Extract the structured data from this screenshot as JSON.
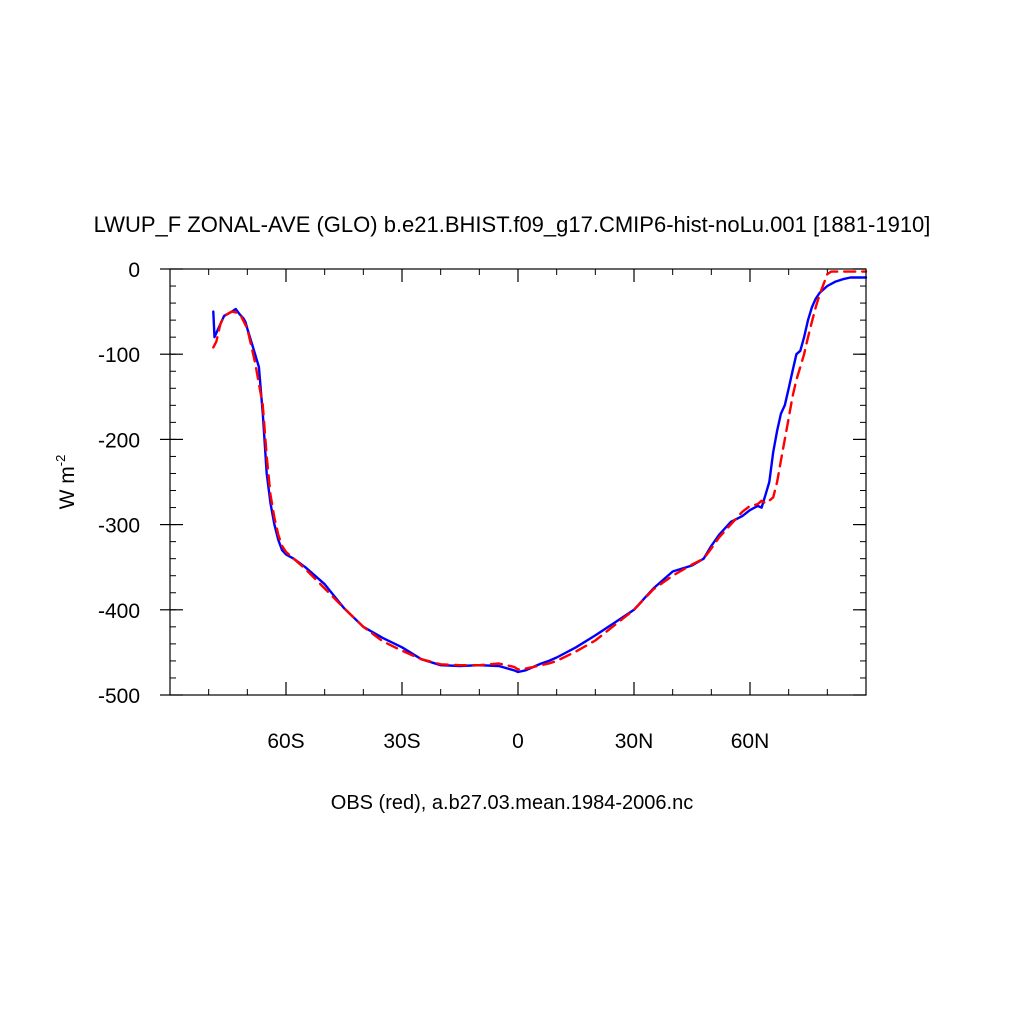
{
  "chart_data": {
    "type": "line",
    "title": "LWUP_F ZONAL-AVE (GLO) b.e21.BHIST.f09_g17.CMIP6-hist-noLu.001 [1881-1910]",
    "xlabel": "OBS (red), a.b27.03.mean.1984-2006.nc",
    "ylabel": "W m",
    "ylabel_exponent": "-2",
    "xlim": [
      -90,
      90
    ],
    "ylim": [
      -500,
      0
    ],
    "x_ticks": [
      {
        "value": -60,
        "label": "60S"
      },
      {
        "value": -30,
        "label": "30S"
      },
      {
        "value": 0,
        "label": "0"
      },
      {
        "value": 30,
        "label": "30N"
      },
      {
        "value": 60,
        "label": "60N"
      }
    ],
    "y_ticks": [
      {
        "value": 0,
        "label": "0"
      },
      {
        "value": -100,
        "label": "-100"
      },
      {
        "value": -200,
        "label": "-200"
      },
      {
        "value": -300,
        "label": "-300"
      },
      {
        "value": -400,
        "label": "-400"
      },
      {
        "value": -500,
        "label": "-500"
      }
    ],
    "series": [
      {
        "color": "#0000ff",
        "dash": "solid",
        "x": [
          -78.8,
          -78.5,
          -77.5,
          -76,
          -74,
          -73,
          -72,
          -71,
          -70.5,
          -70,
          -69,
          -68,
          -67,
          -66,
          -65,
          -64,
          -63,
          -62,
          -61,
          -60,
          -58,
          -55,
          -50,
          -45,
          -40,
          -35,
          -30,
          -25,
          -20,
          -15,
          -10,
          -5,
          -1,
          0,
          2,
          4,
          6,
          8,
          10,
          15,
          20,
          25,
          30,
          35,
          40,
          45,
          48,
          50,
          52,
          55,
          58,
          60,
          62,
          63,
          64,
          65,
          66,
          67,
          68,
          69,
          70,
          71,
          72,
          73,
          74,
          75,
          76,
          77,
          78,
          80,
          82,
          84,
          86,
          88,
          90
        ],
        "y": [
          -50,
          -80,
          -70,
          -55,
          -50,
          -47,
          -53,
          -58,
          -62,
          -70,
          -85,
          -100,
          -115,
          -170,
          -240,
          -275,
          -300,
          -318,
          -330,
          -335,
          -340,
          -350,
          -370,
          -398,
          -420,
          -433,
          -444,
          -458,
          -465,
          -466,
          -465,
          -466,
          -471,
          -473,
          -471,
          -467,
          -463,
          -460,
          -456,
          -444,
          -430,
          -415,
          -400,
          -375,
          -355,
          -348,
          -340,
          -325,
          -312,
          -297,
          -290,
          -283,
          -278,
          -280,
          -265,
          -250,
          -215,
          -190,
          -170,
          -160,
          -140,
          -120,
          -100,
          -96,
          -80,
          -60,
          -45,
          -35,
          -28,
          -20,
          -15,
          -12,
          -10,
          -10,
          -10
        ]
      },
      {
        "color": "#ff0000",
        "dash": "dashed",
        "x": [
          -78.8,
          -78,
          -77,
          -76,
          -74,
          -72,
          -70,
          -68,
          -66,
          -65,
          -64,
          -63,
          -62,
          -61,
          -60,
          -58,
          -55,
          -50,
          -45,
          -40,
          -35,
          -30,
          -25,
          -20,
          -15,
          -10,
          -5,
          -1,
          0,
          2,
          4,
          6,
          8,
          10,
          15,
          20,
          25,
          30,
          35,
          40,
          45,
          48,
          50,
          52,
          55,
          58,
          60,
          62,
          63,
          64,
          65,
          66,
          67,
          68,
          69,
          70,
          71,
          72,
          73,
          74,
          75,
          76,
          77,
          78,
          79,
          80,
          81,
          82,
          84,
          86,
          88,
          90
        ],
        "y": [
          -92,
          -85,
          -65,
          -55,
          -50,
          -52,
          -70,
          -110,
          -160,
          -220,
          -265,
          -292,
          -312,
          -325,
          -332,
          -340,
          -352,
          -375,
          -398,
          -420,
          -437,
          -448,
          -458,
          -464,
          -465,
          -465,
          -463,
          -467,
          -470,
          -469,
          -467,
          -465,
          -463,
          -460,
          -449,
          -436,
          -418,
          -400,
          -376,
          -360,
          -347,
          -340,
          -328,
          -315,
          -300,
          -285,
          -278,
          -276,
          -272,
          -275,
          -272,
          -268,
          -250,
          -225,
          -200,
          -175,
          -150,
          -130,
          -115,
          -100,
          -80,
          -62,
          -45,
          -30,
          -18,
          -6,
          -3,
          -3,
          -3,
          -3,
          -3,
          -3
        ]
      }
    ]
  }
}
